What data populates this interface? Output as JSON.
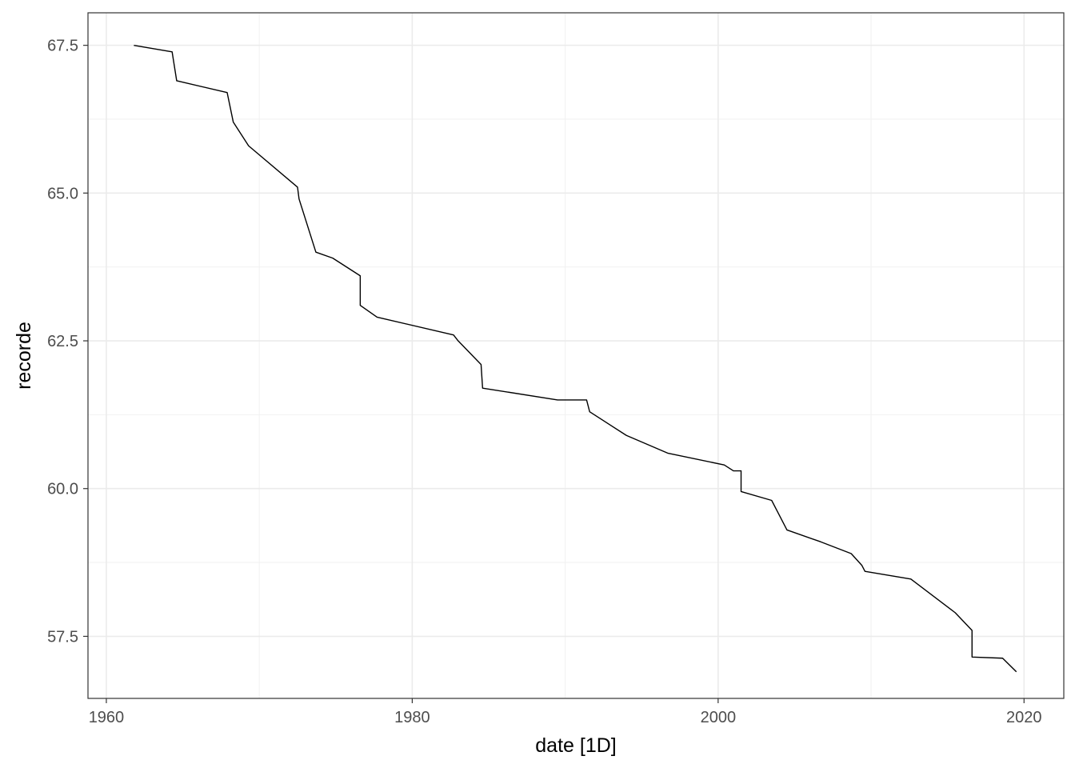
{
  "chart_data": {
    "type": "line",
    "title": "",
    "xlabel": "date [1D]",
    "ylabel": "recorde",
    "xlim": [
      1958.8,
      1922.6
    ],
    "ylim": [
      56.45,
      68.05
    ],
    "x_ticks": [
      "1960",
      "1980",
      "2000",
      "2020"
    ],
    "y_ticks": [
      "57.5",
      "60.0",
      "62.5",
      "65.0",
      "67.5"
    ],
    "grid": true,
    "line_color": "#000000",
    "series": [
      {
        "x": [
          1961.8,
          1964.3,
          1964.6,
          1967.9,
          1968.3,
          1969.3,
          1972.5,
          1972.6,
          1973.7,
          1974.8,
          1976.6,
          1976.6,
          1977.7,
          1982.7,
          1983.0,
          1984.5,
          1984.6,
          1989.5,
          1991.4,
          1991.6,
          1994.0,
          1996.7,
          2000.4,
          2001.0,
          2001.5,
          2001.5,
          2003.5,
          2004.5,
          2006.7,
          2008.7,
          2009.4,
          2009.6,
          2012.6,
          2015.5,
          2016.6,
          2016.6,
          2018.6,
          2019.5
        ],
        "y": [
          67.5,
          67.39,
          66.9,
          66.7,
          66.2,
          65.8,
          65.1,
          64.9,
          64.0,
          63.9,
          63.6,
          63.1,
          62.9,
          62.6,
          62.5,
          62.1,
          61.7,
          61.5,
          61.5,
          61.3,
          60.9,
          60.6,
          60.4,
          60.3,
          60.3,
          59.95,
          59.8,
          59.3,
          59.1,
          58.9,
          58.7,
          58.6,
          58.47,
          57.9,
          57.6,
          57.15,
          57.13,
          56.9
        ]
      }
    ]
  }
}
